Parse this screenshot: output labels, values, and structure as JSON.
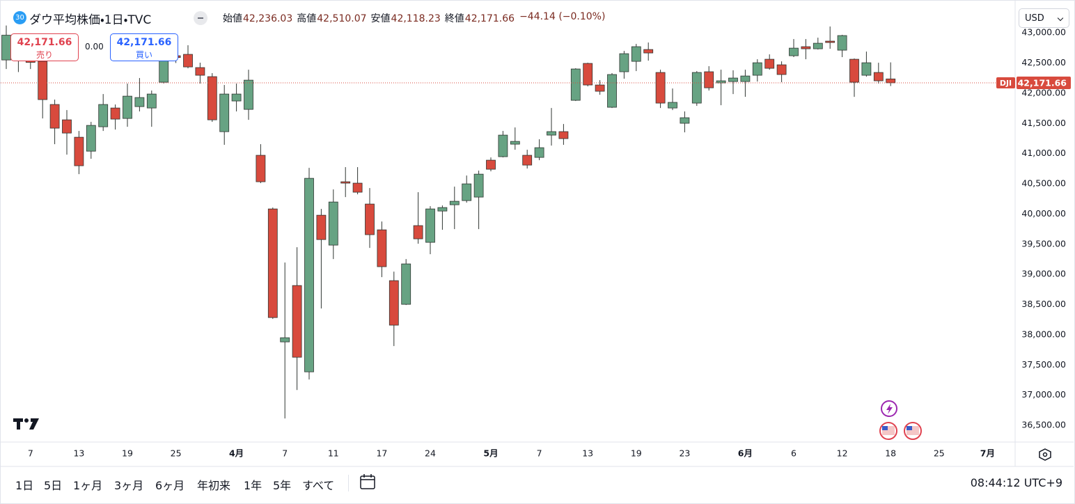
{
  "header": {
    "badge": "30",
    "title": "ダウ平均株価・1日・TVC",
    "ohlc": [
      {
        "label": "始値",
        "value": "42,236.03"
      },
      {
        "label": "高値",
        "value": "42,510.07"
      },
      {
        "label": "安値",
        "value": "42,118.23"
      },
      {
        "label": "終値",
        "value": "42,171.66"
      }
    ],
    "change": "−44.14 (−0.10%)"
  },
  "trade": {
    "sell_price": "42,171.66",
    "sell_label": "売り",
    "spread": "0.00",
    "buy_price": "42,171.66",
    "buy_label": "買い"
  },
  "currency": "USD",
  "toolbar": {
    "ranges": [
      "1日",
      "5日",
      "1ヶ月",
      "3ヶ月",
      "6ヶ月",
      "年初来",
      "1年",
      "5年",
      "すべて"
    ],
    "time": "08:44:12 UTC+9"
  },
  "chart_data": {
    "type": "candlestick",
    "symbol": "DJI",
    "categories": [
      null,
      null,
      "7",
      null,
      null,
      null,
      "13",
      null,
      null,
      null,
      "19",
      null,
      null,
      null,
      "25",
      null,
      null,
      null,
      null,
      "4月",
      null,
      null,
      null,
      "7",
      null,
      null,
      null,
      "11",
      null,
      null,
      null,
      "17",
      null,
      null,
      null,
      "24",
      null,
      null,
      null,
      null,
      "5月",
      null,
      null,
      null,
      "7",
      null,
      null,
      null,
      "13",
      null,
      null,
      null,
      "19",
      null,
      null,
      null,
      "23",
      null,
      null,
      null,
      null,
      "6月",
      null,
      null,
      null,
      "6",
      null,
      null,
      null,
      "12",
      null,
      null,
      null,
      "18",
      null,
      null,
      null,
      "25",
      null,
      null,
      null,
      "7月"
    ],
    "open": [
      42550,
      42700,
      42560,
      42527,
      41813,
      41559,
      41271,
      41040,
      41444,
      41755,
      41582,
      41778,
      41755,
      42182,
      42620,
      42643,
      42424,
      42274,
      41363,
      41871,
      41732,
      40972,
      40084,
      37883,
      38816,
      37387,
      39980,
      39485,
      40534,
      40511,
      40165,
      39738,
      38897,
      38505,
      39808,
      39531,
      40049,
      40153,
      40222,
      40280,
      40891,
      40949,
      41156,
      40972,
      40937,
      41306,
      41364,
      41882,
      42493,
      42136,
      41767,
      42355,
      42527,
      42723,
      42343,
      41755,
      41502,
      41836,
      42355,
      42170,
      42193,
      42193,
      42297,
      42562,
      42470,
      42620,
      42770,
      42735,
      42862,
      42712,
      42562,
      42297,
      42343,
      42236.03,
      null,
      null,
      null,
      null,
      null,
      null,
      null,
      null
    ],
    "high": [
      43120,
      42900,
      42650,
      42620,
      41894,
      41720,
      41375,
      41525,
      41986,
      41813,
      42159,
      42251,
      42044,
      42677,
      42700,
      42793,
      42505,
      42332,
      42136,
      42159,
      42389,
      41156,
      40107,
      39197,
      39450,
      40764,
      40084,
      40407,
      40776,
      40776,
      40430,
      39876,
      39046,
      39254,
      40361,
      40130,
      40142,
      40453,
      40637,
      40718,
      40937,
      41375,
      41433,
      41064,
      41237,
      41755,
      41490,
      42413,
      42504,
      42216,
      42332,
      42700,
      42816,
      42839,
      42389,
      42078,
      41698,
      42366,
      42447,
      42389,
      42378,
      42389,
      42562,
      42643,
      42527,
      42896,
      42896,
      42919,
      43104,
      42966,
      42574,
      42689,
      42504,
      42510.07,
      null,
      null,
      null,
      null,
      null,
      null,
      null,
      null
    ],
    "low": [
      42400,
      42350,
      42400,
      41582,
      41156,
      40983,
      40660,
      40914,
      41375,
      41398,
      41444,
      41698,
      41444,
      42159,
      42500,
      42412,
      42159,
      41525,
      41145,
      41698,
      41559,
      40511,
      38263,
      36615,
      37087,
      37261,
      38436,
      39254,
      40280,
      40326,
      39439,
      38955,
      37814,
      38494,
      39508,
      39335,
      39739,
      39750,
      40188,
      39750,
      40706,
      40937,
      41064,
      40753,
      40891,
      41133,
      41145,
      41871,
      42113,
      41974,
      41755,
      42240,
      42366,
      42539,
      41755,
      41721,
      41352,
      41790,
      42044,
      41801,
      41986,
      41940,
      42193,
      42389,
      42182,
      42597,
      42562,
      42723,
      42735,
      42597,
      41940,
      42274,
      42159,
      42118.23,
      null,
      null,
      null,
      null,
      null,
      null,
      null,
      null
    ],
    "close": [
      42960,
      42580,
      42510,
      41894,
      41421,
      41340,
      40799,
      41467,
      41813,
      41571,
      41951,
      41928,
      41986,
      42597,
      42590,
      42435,
      42297,
      41559,
      41986,
      41986,
      42216,
      40534,
      38286,
      37952,
      37629,
      40591,
      39577,
      40199,
      40511,
      40361,
      39658,
      39128,
      38160,
      39174,
      39589,
      40084,
      40107,
      40211,
      40499,
      40660,
      40741,
      41306,
      41202,
      40810,
      41098,
      41364,
      41248,
      42401,
      42136,
      42032,
      42309,
      42654,
      42770,
      42666,
      41836,
      41848,
      41594,
      42343,
      42089,
      42205,
      42251,
      42285,
      42504,
      42412,
      42309,
      42746,
      42735,
      42827,
      42839,
      42954,
      42182,
      42504,
      42205,
      42171.66,
      null,
      null,
      null,
      null,
      null,
      null,
      null,
      null
    ],
    "up_color": "#67a383",
    "down_color": "#d84a3d",
    "outline_color": "#2f3531",
    "last_price": {
      "value": 42171.66,
      "label": "42,171.66"
    },
    "ylim": [
      36225,
      43485
    ],
    "yticks": [
      {
        "value": 36500,
        "label": "36,500.00"
      },
      {
        "value": 37000,
        "label": "37,000.00"
      },
      {
        "value": 37500,
        "label": "37,500.00"
      },
      {
        "value": 38000,
        "label": "38,000.00"
      },
      {
        "value": 38500,
        "label": "38,500.00"
      },
      {
        "value": 39000,
        "label": "39,000.00"
      },
      {
        "value": 39500,
        "label": "39,500.00"
      },
      {
        "value": 40000,
        "label": "40,000.00"
      },
      {
        "value": 40500,
        "label": "40,500.00"
      },
      {
        "value": 41000,
        "label": "41,000.00"
      },
      {
        "value": 41500,
        "label": "41,500.00"
      },
      {
        "value": 42000,
        "label": "42,000.00"
      },
      {
        "value": 42500,
        "label": "42,500.00"
      },
      {
        "value": 43000,
        "label": "43,000.00"
      }
    ],
    "grid": false
  }
}
